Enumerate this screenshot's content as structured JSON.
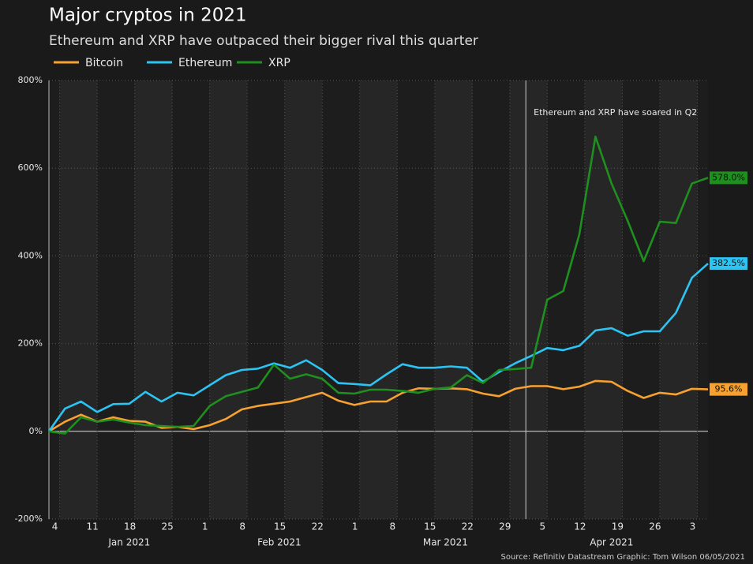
{
  "chart_data": {
    "type": "line",
    "title": "Major cryptos in 2021",
    "subtitle": "Ethereum and XRP have outpaced their bigger rival this quarter",
    "source": "Source: Refinitiv Datastream  Graphic: Tom Wilson 06/05/2021",
    "annotation": {
      "x": "2021-04-01",
      "text": "Ethereum and XRP have soared in Q2"
    },
    "x": [
      "2021-01-02",
      "2021-01-05",
      "2021-01-08",
      "2021-01-11",
      "2021-01-14",
      "2021-01-17",
      "2021-01-20",
      "2021-01-23",
      "2021-01-26",
      "2021-01-29",
      "2021-02-01",
      "2021-02-04",
      "2021-02-07",
      "2021-02-10",
      "2021-02-13",
      "2021-02-16",
      "2021-02-19",
      "2021-02-22",
      "2021-02-25",
      "2021-02-28",
      "2021-03-03",
      "2021-03-06",
      "2021-03-09",
      "2021-03-12",
      "2021-03-15",
      "2021-03-18",
      "2021-03-21",
      "2021-03-24",
      "2021-03-27",
      "2021-03-30",
      "2021-04-02",
      "2021-04-05",
      "2021-04-08",
      "2021-04-11",
      "2021-04-14",
      "2021-04-17",
      "2021-04-20",
      "2021-04-23",
      "2021-04-26",
      "2021-04-29",
      "2021-05-02",
      "2021-05-05"
    ],
    "series": [
      {
        "name": "Bitcoin",
        "color": "#f7a130",
        "values": [
          0,
          22,
          38,
          22,
          32,
          24,
          22,
          8,
          10,
          5,
          14,
          28,
          50,
          58,
          63,
          68,
          78,
          88,
          70,
          60,
          68,
          68,
          88,
          98,
          97,
          98,
          96,
          86,
          80,
          97,
          103,
          103,
          96,
          102,
          115,
          113,
          92,
          76,
          88,
          84,
          97,
          95.6
        ],
        "value_labels": [
          null,
          null,
          null,
          null,
          null,
          null,
          null,
          null,
          null,
          null,
          null,
          null,
          null,
          null,
          null,
          null,
          null,
          null,
          null,
          null,
          null,
          null,
          null,
          null,
          null,
          null,
          null,
          null,
          null,
          null,
          null,
          null,
          null,
          null,
          null,
          null,
          null,
          null,
          null,
          null,
          null,
          "95.6%"
        ]
      },
      {
        "name": "Ethereum",
        "color": "#2bc4f3",
        "values": [
          0,
          52,
          68,
          44,
          62,
          63,
          90,
          68,
          88,
          82,
          105,
          128,
          140,
          143,
          155,
          145,
          162,
          140,
          110,
          108,
          105,
          130,
          153,
          145,
          145,
          148,
          145,
          113,
          135,
          155,
          172,
          190,
          185,
          195,
          230,
          235,
          218,
          228,
          228,
          270,
          350,
          382.5
        ],
        "value_labels": [
          null,
          null,
          null,
          null,
          null,
          null,
          null,
          null,
          null,
          null,
          null,
          null,
          null,
          null,
          null,
          null,
          null,
          null,
          null,
          null,
          null,
          null,
          null,
          null,
          null,
          null,
          null,
          null,
          null,
          null,
          null,
          null,
          null,
          null,
          null,
          null,
          null,
          null,
          null,
          null,
          null,
          "382.5%"
        ]
      },
      {
        "name": "XRP",
        "color": "#1f8f1f",
        "values": [
          0,
          -5,
          32,
          22,
          27,
          20,
          14,
          12,
          10,
          12,
          58,
          80,
          90,
          100,
          152,
          120,
          130,
          120,
          88,
          86,
          95,
          95,
          92,
          88,
          97,
          100,
          128,
          110,
          140,
          142,
          145,
          300,
          320,
          450,
          672,
          565,
          480,
          388,
          478,
          475,
          565,
          578
        ],
        "value_labels": [
          null,
          null,
          null,
          null,
          null,
          null,
          null,
          null,
          null,
          null,
          null,
          null,
          null,
          null,
          null,
          null,
          null,
          null,
          null,
          null,
          null,
          null,
          null,
          null,
          null,
          null,
          null,
          null,
          null,
          null,
          null,
          null,
          null,
          null,
          null,
          null,
          null,
          null,
          null,
          null,
          null,
          "578.0%"
        ]
      }
    ],
    "xlim": [
      "2021-01-02",
      "2021-05-05"
    ],
    "xticks": [
      {
        "value": "2021-01-04",
        "label": "4"
      },
      {
        "value": "2021-01-11",
        "label": "11"
      },
      {
        "value": "2021-01-18",
        "label": "18"
      },
      {
        "value": "2021-01-25",
        "label": "25"
      },
      {
        "value": "2021-02-01",
        "label": "1"
      },
      {
        "value": "2021-02-08",
        "label": "8"
      },
      {
        "value": "2021-02-15",
        "label": "15"
      },
      {
        "value": "2021-02-22",
        "label": "22"
      },
      {
        "value": "2021-03-01",
        "label": "1"
      },
      {
        "value": "2021-03-08",
        "label": "8"
      },
      {
        "value": "2021-03-15",
        "label": "15"
      },
      {
        "value": "2021-03-22",
        "label": "22"
      },
      {
        "value": "2021-03-29",
        "label": "29"
      },
      {
        "value": "2021-04-05",
        "label": "5"
      },
      {
        "value": "2021-04-12",
        "label": "12"
      },
      {
        "value": "2021-04-19",
        "label": "19"
      },
      {
        "value": "2021-04-26",
        "label": "26"
      },
      {
        "value": "2021-05-03",
        "label": "3"
      }
    ],
    "xgroups": [
      {
        "value": "2021-01-17",
        "label": "Jan 2021"
      },
      {
        "value": "2021-02-14",
        "label": "Feb 2021"
      },
      {
        "value": "2021-03-17",
        "label": "Mar 2021"
      },
      {
        "value": "2021-04-17",
        "label": "Apr 2021"
      }
    ],
    "ylim": [
      -200,
      800
    ],
    "yticks": [
      {
        "value": -200,
        "label": "-200%"
      },
      {
        "value": 0,
        "label": "0%"
      },
      {
        "value": 200,
        "label": "200%"
      },
      {
        "value": 400,
        "label": "400%"
      },
      {
        "value": 600,
        "label": "600%"
      },
      {
        "value": 800,
        "label": "800%"
      }
    ],
    "grid": true
  }
}
